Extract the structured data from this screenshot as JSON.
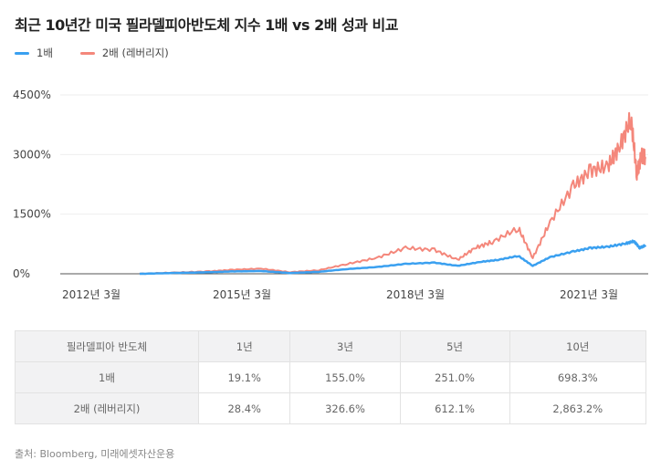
{
  "title": "최근 10년간 미국 필라델피아반도체 지수 1배 vs 2배 성과 비교",
  "chart_data": {
    "type": "line",
    "title": "최근 10년간 미국 필라델피아반도체 지수 1배 vs 2배 성과 비교",
    "ylim": [
      0,
      4500
    ],
    "yticks": [
      {
        "v": 0,
        "label": "0%"
      },
      {
        "v": 1500,
        "label": "1500%"
      },
      {
        "v": 3000,
        "label": "3000%"
      },
      {
        "v": 4500,
        "label": "4500%"
      }
    ],
    "xticks": [
      {
        "v": 2012.17,
        "label": "2012년 3월"
      },
      {
        "v": 2015.17,
        "label": "2015년 3월"
      },
      {
        "v": 2018.17,
        "label": "2018년 3월"
      },
      {
        "v": 2021.17,
        "label": "2021년 3월"
      }
    ],
    "legend_position": "top-left",
    "series": [
      {
        "name": "1배",
        "color": "#3aa0f0",
        "points": [
          [
            2013.4,
            0
          ],
          [
            2014,
            20
          ],
          [
            2014.6,
            40
          ],
          [
            2015,
            60
          ],
          [
            2015.5,
            70
          ],
          [
            2016,
            20
          ],
          [
            2016.5,
            50
          ],
          [
            2017,
            120
          ],
          [
            2017.5,
            170
          ],
          [
            2018,
            250
          ],
          [
            2018.5,
            280
          ],
          [
            2018.9,
            200
          ],
          [
            2019.3,
            300
          ],
          [
            2019.6,
            350
          ],
          [
            2019.95,
            450
          ],
          [
            2020.2,
            200
          ],
          [
            2020.5,
            420
          ],
          [
            2020.9,
            560
          ],
          [
            2021.2,
            650
          ],
          [
            2021.5,
            680
          ],
          [
            2021.8,
            760
          ],
          [
            2021.95,
            820
          ],
          [
            2022.05,
            650
          ],
          [
            2022.15,
            720
          ]
        ]
      },
      {
        "name": "2배 (레버리지)",
        "color": "#f4877b",
        "points": [
          [
            2013.4,
            0
          ],
          [
            2014,
            30
          ],
          [
            2014.6,
            60
          ],
          [
            2015,
            100
          ],
          [
            2015.5,
            130
          ],
          [
            2016,
            40
          ],
          [
            2016.5,
            90
          ],
          [
            2017,
            250
          ],
          [
            2017.5,
            400
          ],
          [
            2018,
            650
          ],
          [
            2018.5,
            600
          ],
          [
            2018.9,
            350
          ],
          [
            2019.2,
            650
          ],
          [
            2019.5,
            800
          ],
          [
            2019.95,
            1150
          ],
          [
            2020.2,
            400
          ],
          [
            2020.5,
            1300
          ],
          [
            2020.9,
            2200
          ],
          [
            2021.2,
            2600
          ],
          [
            2021.5,
            2700
          ],
          [
            2021.7,
            3200
          ],
          [
            2021.9,
            3900
          ],
          [
            2022.0,
            2500
          ],
          [
            2022.08,
            3000
          ],
          [
            2022.15,
            2900
          ]
        ]
      }
    ]
  },
  "table": {
    "header": [
      "필라델피아 반도체",
      "1년",
      "3년",
      "5년",
      "10년"
    ],
    "rows": [
      [
        "1배",
        "19.1%",
        "155.0%",
        "251.0%",
        "698.3%"
      ],
      [
        "2배 (레버리지)",
        "28.4%",
        "326.6%",
        "612.1%",
        "2,863.2%"
      ]
    ]
  },
  "source": "출처: Bloomberg, 미래에셋자산운용"
}
